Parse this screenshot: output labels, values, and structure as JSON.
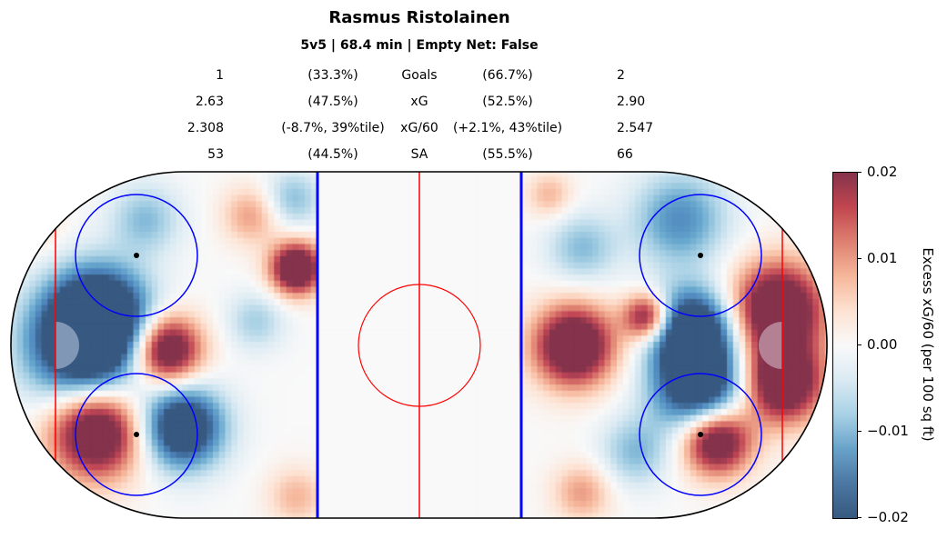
{
  "title": "Rasmus Ristolainen",
  "subtitle": "5v5 | 68.4 min | Empty Net: False",
  "stats": [
    {
      "label": "Goals",
      "left_value": "1",
      "left_pct": "(33.3%)",
      "right_pct": "(66.7%)",
      "right_value": "2"
    },
    {
      "label": "xG",
      "left_value": "2.63",
      "left_pct": "(47.5%)",
      "right_pct": "(52.5%)",
      "right_value": "2.90"
    },
    {
      "label": "xG/60",
      "left_value": "2.308",
      "left_pct": "(-8.7%, 39%tile)",
      "right_pct": "(+2.1%, 43%tile)",
      "right_value": "2.547"
    },
    {
      "label": "SA",
      "left_value": "53",
      "left_pct": "(44.5%)",
      "right_pct": "(55.5%)",
      "right_value": "66"
    }
  ],
  "chart_data": {
    "type": "heatmap",
    "colormap": "RdBu_r",
    "colorbar": {
      "label": "Excess xG/60 (per 100 sq ft)",
      "range": [
        -0.02,
        0.02
      ],
      "ticks": [
        "0.02",
        "0.01",
        "0.00",
        "−0.01",
        "−0.02"
      ]
    },
    "rink": {
      "x_range_ft": [
        -100,
        100
      ],
      "y_range_ft": [
        -42.5,
        42.5
      ],
      "blue_line_color": "#0000ff",
      "red_line_color": "#ff0000"
    },
    "hotspots_ft": [
      {
        "x": -82,
        "y": 0,
        "v": -0.03,
        "r": 10
      },
      {
        "x": -78,
        "y": 8,
        "v": -0.025,
        "r": 8
      },
      {
        "x": -62,
        "y": -1,
        "v": 0.03,
        "r": 6
      },
      {
        "x": -79,
        "y": -21,
        "v": 0.03,
        "r": 8
      },
      {
        "x": -58,
        "y": -20,
        "v": -0.03,
        "r": 7
      },
      {
        "x": -30,
        "y": 19,
        "v": 0.03,
        "r": 4.5
      },
      {
        "x": -41,
        "y": 32,
        "v": 0.01,
        "r": 5
      },
      {
        "x": -67,
        "y": 31,
        "v": -0.01,
        "r": 6
      },
      {
        "x": -31,
        "y": 36,
        "v": -0.01,
        "r": 5
      },
      {
        "x": -30,
        "y": -37,
        "v": 0.008,
        "r": 5
      },
      {
        "x": -40,
        "y": 6,
        "v": -0.008,
        "r": 5
      },
      {
        "x": -95,
        "y": 30,
        "v": 0.006,
        "r": 5
      },
      {
        "x": 38,
        "y": 0,
        "v": 0.03,
        "r": 7
      },
      {
        "x": 56,
        "y": 7,
        "v": 0.025,
        "r": 4
      },
      {
        "x": 67,
        "y": 4,
        "v": -0.03,
        "r": 7
      },
      {
        "x": 69,
        "y": -10,
        "v": -0.03,
        "r": 8
      },
      {
        "x": 88,
        "y": 9,
        "v": 0.03,
        "r": 8
      },
      {
        "x": 89,
        "y": -9,
        "v": 0.03,
        "r": 7
      },
      {
        "x": 73,
        "y": -23,
        "v": 0.03,
        "r": 6
      },
      {
        "x": 64,
        "y": 31,
        "v": -0.015,
        "r": 8
      },
      {
        "x": 40,
        "y": 24,
        "v": -0.01,
        "r": 6
      },
      {
        "x": 40,
        "y": -36,
        "v": 0.01,
        "r": 5
      },
      {
        "x": 53,
        "y": -26,
        "v": -0.01,
        "r": 6
      },
      {
        "x": 32,
        "y": 37,
        "v": 0.008,
        "r": 4
      }
    ]
  }
}
